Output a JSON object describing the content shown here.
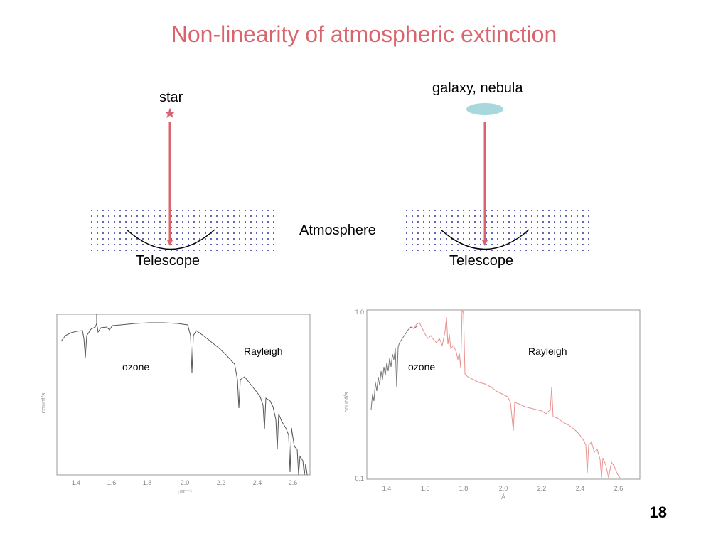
{
  "slide": {
    "title": "Non-linearity of atmospheric extinction",
    "page_number": "18"
  },
  "diagram": {
    "left": {
      "source_label": "star",
      "telescope_label": "Telescope"
    },
    "right": {
      "source_label": "galaxy, nebula",
      "telescope_label": "Telescope"
    },
    "atmosphere_label": "Atmosphere",
    "colors": {
      "accent": "#d9646e",
      "nebula": "#a8d8dc",
      "dots": "#4b4fb0"
    },
    "icons": [
      "star-icon",
      "nebula-ellipse",
      "telescope-mirror"
    ]
  },
  "plots": {
    "left": {
      "ylabel": "count/s",
      "xlabel": "μm⁻¹",
      "xticks": [
        "1.4",
        "1.6",
        "1.8",
        "2.0",
        "2.2",
        "2.4",
        "2.6"
      ],
      "annotations": {
        "ozone": "ozone",
        "rayleigh": "Rayleigh"
      }
    },
    "right": {
      "ylabel": "count/s",
      "xlabel": "Å",
      "yticks": [
        "1.0",
        "0.1"
      ],
      "xticks": [
        "1.4",
        "1.6",
        "1.8",
        "2.0",
        "2.2",
        "2.4",
        "2.6"
      ],
      "annotations": {
        "ozone": "ozone",
        "rayleigh": "Rayleigh"
      }
    }
  }
}
